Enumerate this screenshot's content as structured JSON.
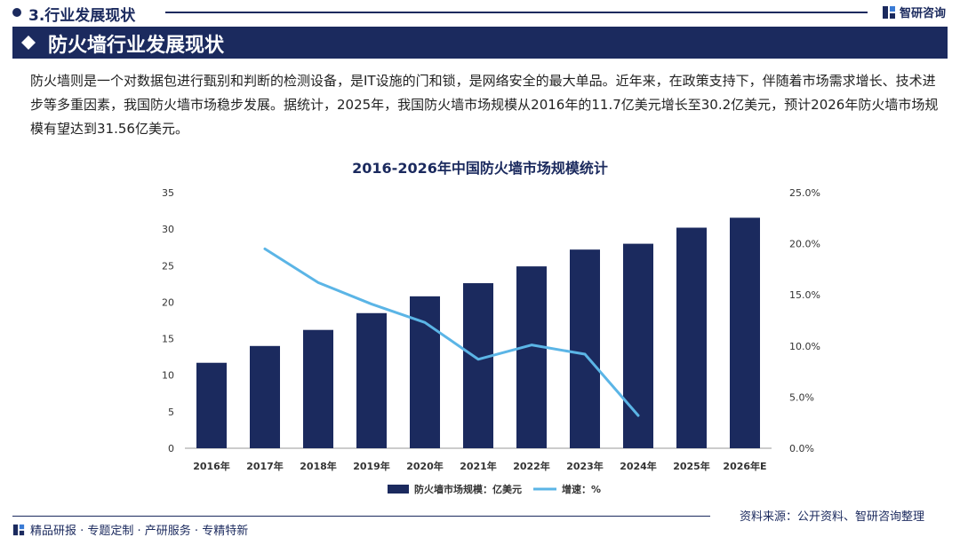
{
  "header": {
    "section_title": "3.行业发展现状",
    "brand": "智研咨询"
  },
  "banner": {
    "title": "防火墙行业发展现状"
  },
  "paragraph": "防火墙则是一个对数据包进行甄别和判断的检测设备，是IT设施的门和锁，是网络安全的最大单品。近年来，在政策支持下，伴随着市场需求增长、技术进步等多重因素，我国防火墙市场稳步发展。据统计，2025年，我国防火墙市场规模从2016年的11.7亿美元增长至30.2亿美元，预计2026年防火墙市场规模有望达到31.56亿美元。",
  "colors": {
    "navy": "#1b2a5e",
    "bar": "#1b2a5e",
    "line": "#5bb5e6",
    "axis": "#333333"
  },
  "chart_data": {
    "type": "bar",
    "title": "2016-2026年中国防火墙市场规模统计",
    "categories": [
      "2016年",
      "2017年",
      "2018年",
      "2019年",
      "2020年",
      "2021年",
      "2022年",
      "2023年",
      "2024年",
      "2025年",
      "2026年E"
    ],
    "series": [
      {
        "name": "防火墙市场规模：亿美元",
        "type": "bar",
        "axis": "left",
        "values": [
          11.7,
          14.0,
          16.2,
          18.5,
          20.8,
          22.6,
          24.9,
          27.2,
          28.0,
          30.2,
          31.56
        ]
      },
      {
        "name": "增速：%",
        "type": "line",
        "axis": "right",
        "values": [
          null,
          19.5,
          16.2,
          14.1,
          12.3,
          8.7,
          10.1,
          9.2,
          3.2,
          null,
          null
        ]
      }
    ],
    "left_axis": {
      "min": 0,
      "max": 35,
      "ticks": [
        "0",
        "5",
        "10",
        "15",
        "20",
        "25",
        "30",
        "35"
      ]
    },
    "right_axis": {
      "min": 0,
      "max": 25,
      "ticks": [
        "0.0%",
        "5.0%",
        "10.0%",
        "15.0%",
        "20.0%",
        "25.0%"
      ]
    },
    "legend_position": "bottom",
    "grid": false
  },
  "footer": {
    "left_text": "精品研报 · 专题定制 · 产研服务 · 专精特新",
    "source": "资料来源：公开资料、智研咨询整理"
  }
}
